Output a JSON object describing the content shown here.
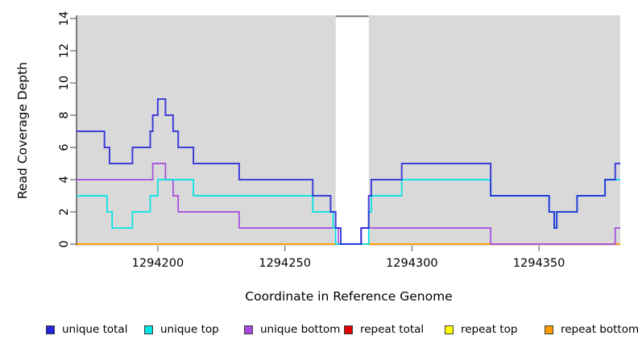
{
  "chart_data": {
    "type": "line",
    "subtype": "step-coverage-plot",
    "title": "",
    "xlabel": "Coordinate in Reference Genome",
    "ylabel": "Read Coverage Depth",
    "x_range": [
      1294168,
      1294382
    ],
    "y_range": [
      0,
      14
    ],
    "x_ticks": [
      1294200,
      1294250,
      1294300,
      1294350
    ],
    "y_ticks": [
      0,
      2,
      4,
      6,
      8,
      10,
      12,
      14
    ],
    "grid": false,
    "legend_position": "bottom",
    "panel_background": "#d9d9d9",
    "masked_region": {
      "x_start": 1294270,
      "x_end": 1294283,
      "fill": "#ffffff",
      "top_marker_color": "#808080"
    },
    "legend": [
      "unique total",
      "unique top",
      "unique bottom",
      "repeat total",
      "repeat top",
      "repeat bottom"
    ],
    "series": [
      {
        "name": "unique total",
        "color": "#2222d6",
        "points": [
          [
            1294168,
            7
          ],
          [
            1294179,
            6
          ],
          [
            1294181,
            5
          ],
          [
            1294190,
            6
          ],
          [
            1294197,
            7
          ],
          [
            1294198,
            8
          ],
          [
            1294200,
            9
          ],
          [
            1294203,
            8
          ],
          [
            1294206,
            7
          ],
          [
            1294208,
            6
          ],
          [
            1294214,
            5
          ],
          [
            1294232,
            4
          ],
          [
            1294261,
            3
          ],
          [
            1294268,
            2
          ],
          [
            1294270,
            1
          ],
          [
            1294272,
            0
          ],
          [
            1294280,
            1
          ],
          [
            1294283,
            3
          ],
          [
            1294284,
            4
          ],
          [
            1294296,
            5
          ],
          [
            1294331,
            3
          ],
          [
            1294354,
            2
          ],
          [
            1294356,
            1
          ],
          [
            1294357,
            2
          ],
          [
            1294365,
            3
          ],
          [
            1294376,
            4
          ],
          [
            1294380,
            5
          ],
          [
            1294382,
            5
          ]
        ]
      },
      {
        "name": "unique top",
        "color": "#00e3e3",
        "points": [
          [
            1294168,
            3
          ],
          [
            1294180,
            2
          ],
          [
            1294182,
            1
          ],
          [
            1294190,
            2
          ],
          [
            1294197,
            3
          ],
          [
            1294200,
            4
          ],
          [
            1294214,
            3
          ],
          [
            1294261,
            2
          ],
          [
            1294269,
            1
          ],
          [
            1294270,
            0
          ],
          [
            1294283,
            2
          ],
          [
            1294284,
            3
          ],
          [
            1294296,
            4
          ],
          [
            1294331,
            3
          ],
          [
            1294354,
            2
          ],
          [
            1294356,
            1
          ],
          [
            1294357,
            2
          ],
          [
            1294365,
            3
          ],
          [
            1294376,
            4
          ],
          [
            1294382,
            4
          ]
        ]
      },
      {
        "name": "unique bottom",
        "color": "#a64ae0",
        "points": [
          [
            1294168,
            4
          ],
          [
            1294198,
            5
          ],
          [
            1294203,
            4
          ],
          [
            1294206,
            3
          ],
          [
            1294208,
            2
          ],
          [
            1294232,
            1
          ],
          [
            1294271,
            0
          ],
          [
            1294280,
            1
          ],
          [
            1294331,
            0
          ],
          [
            1294380,
            1
          ],
          [
            1294382,
            1
          ]
        ]
      },
      {
        "name": "repeat total",
        "color": "#e00000",
        "points": [
          [
            1294168,
            0
          ],
          [
            1294382,
            0
          ]
        ]
      },
      {
        "name": "repeat top",
        "color": "#ffff00",
        "points": [
          [
            1294168,
            0
          ],
          [
            1294382,
            0
          ]
        ]
      },
      {
        "name": "repeat bottom",
        "color": "#ff9d00",
        "points": [
          [
            1294168,
            0
          ],
          [
            1294382,
            0
          ]
        ]
      }
    ]
  }
}
